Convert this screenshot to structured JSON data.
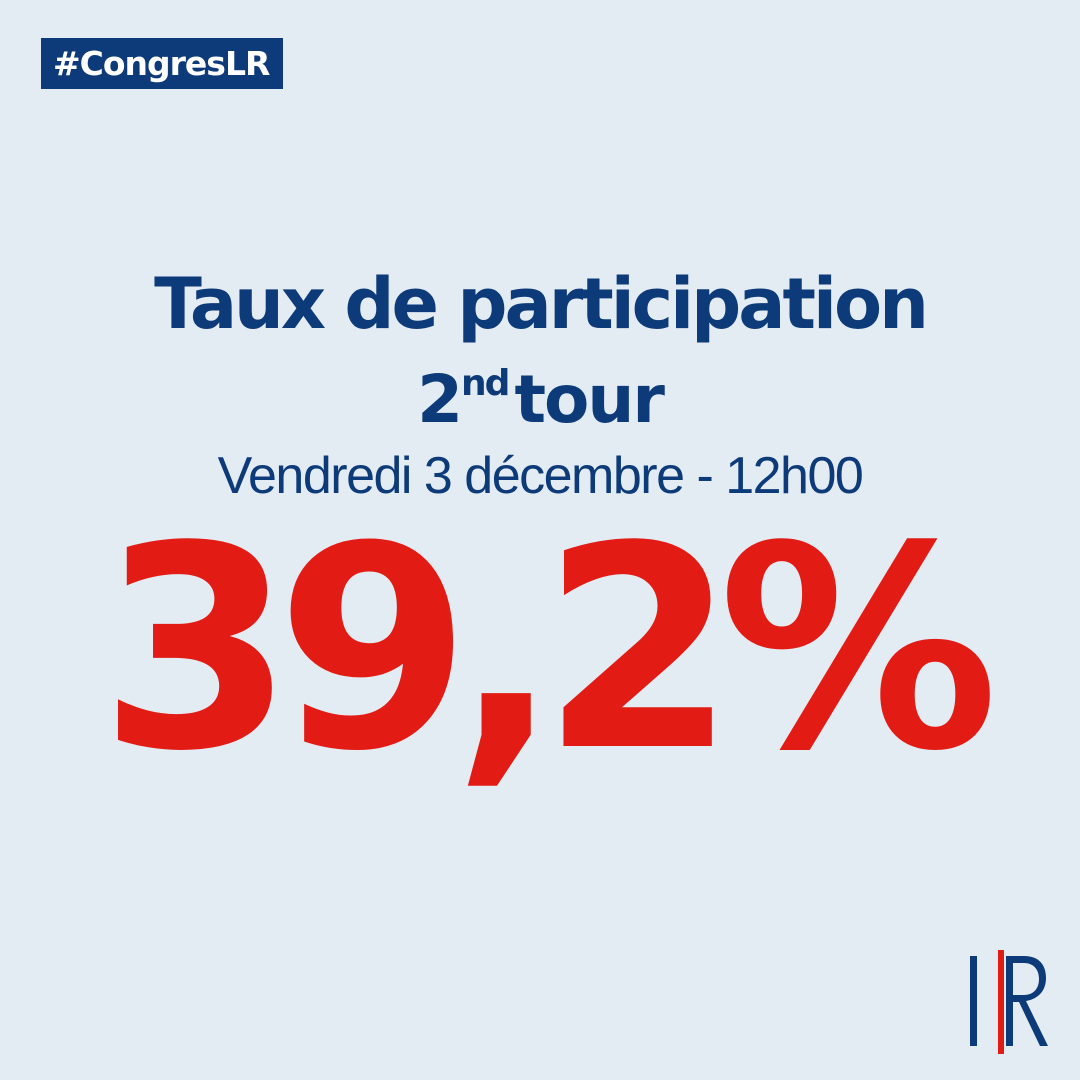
{
  "hashtag": "#CongresLR",
  "title": "Taux de participation",
  "round": {
    "number": "2",
    "suffix": "nd",
    "label": "tour"
  },
  "date": "Vendredi 3 décembre - 12h00",
  "rate": "39,2%",
  "logo": {
    "text": "LR",
    "colors": {
      "blue": "#0d3a78",
      "red": "#e21c14"
    }
  },
  "colors": {
    "background": "#e3ebf3",
    "primary": "#0d3a78",
    "accent": "#e21c14"
  }
}
